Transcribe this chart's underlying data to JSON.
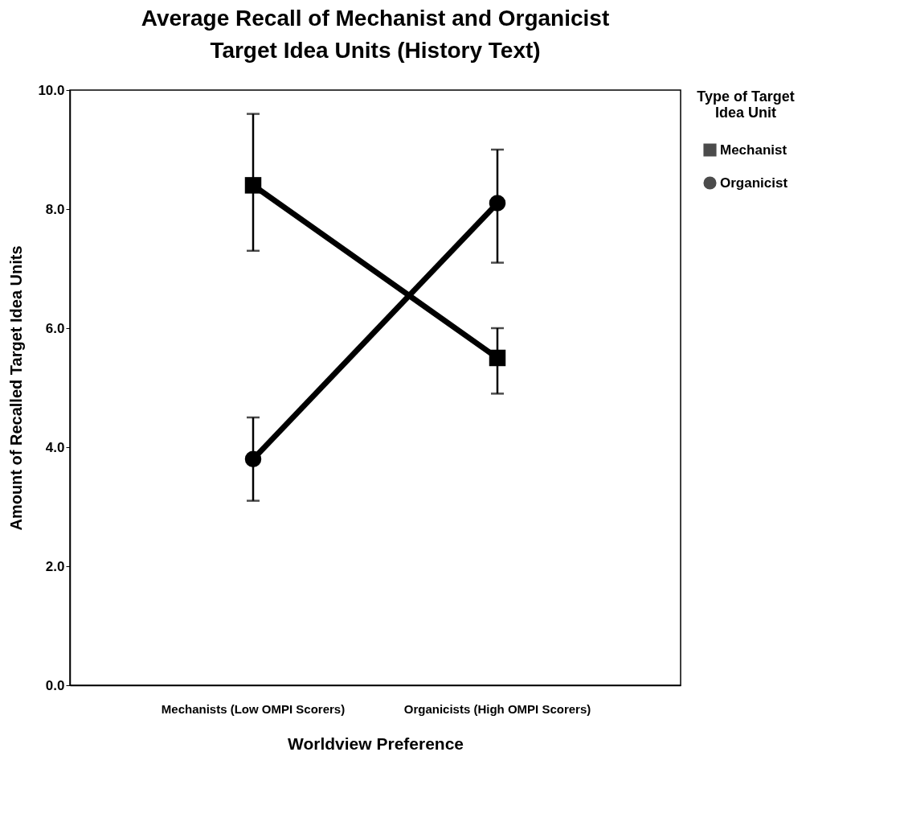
{
  "chart_data": {
    "type": "line",
    "title": "Average Recall of Mechanist and Organicist Target Idea Units (History Text)",
    "xlabel": "Worldview Preference",
    "ylabel": "Amount of Recalled Target Idea Units",
    "legend_title": "Type of Target Idea Unit",
    "categories": [
      "Mechanists (Low OMPI Scorers)",
      "Organicists (High OMPI Scorers)"
    ],
    "series": [
      {
        "name": "Mechanist",
        "color": "#000000",
        "marker": "square",
        "values": [
          8.4,
          5.5
        ],
        "errors": [
          [
            7.3,
            9.6
          ],
          [
            4.9,
            6.0
          ]
        ]
      },
      {
        "name": "Organicist",
        "color": "#000000",
        "marker": "circle",
        "values": [
          3.8,
          8.1
        ],
        "errors": [
          [
            3.1,
            4.5
          ],
          [
            7.1,
            9.0
          ]
        ]
      }
    ],
    "ylim": [
      0,
      10
    ],
    "yticks": [
      {
        "value": 0,
        "label": "0.0"
      },
      {
        "value": 2,
        "label": "2.0"
      },
      {
        "value": 4,
        "label": "4.0"
      },
      {
        "value": 6,
        "label": "6.0"
      },
      {
        "value": 8,
        "label": "8.0"
      },
      {
        "value": 10,
        "label": "10.0"
      }
    ],
    "grid": false,
    "legend": "right",
    "line_style": "solid"
  }
}
